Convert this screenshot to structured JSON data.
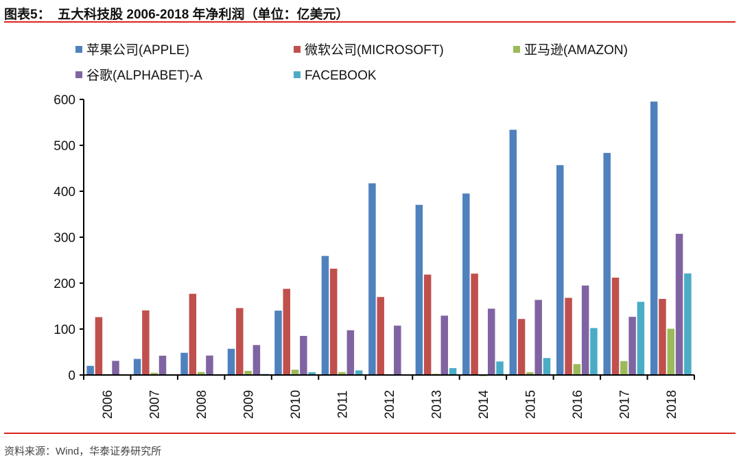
{
  "header": {
    "title": "图表5：  五大科技股 2006-2018 年净利润（单位：亿美元）"
  },
  "footer": {
    "source": "资料来源：Wind，华泰证券研究所"
  },
  "colors": {
    "rule": "#d9241b"
  },
  "chart_data": {
    "type": "bar",
    "title": "",
    "xlabel": "",
    "ylabel": "",
    "ylim": [
      0,
      600
    ],
    "yticks": [
      0,
      100,
      200,
      300,
      400,
      500,
      600
    ],
    "grid": false,
    "legend_placement": "top",
    "categories": [
      "2006",
      "2007",
      "2008",
      "2009",
      "2010",
      "2011",
      "2012",
      "2013",
      "2014",
      "2015",
      "2016",
      "2017",
      "2018"
    ],
    "series": [
      {
        "name": "苹果公司(APPLE)",
        "color": "#4F81BD",
        "values": [
          19.9,
          35.0,
          48.3,
          57.0,
          140.1,
          259.2,
          417.3,
          370.4,
          395.1,
          533.9,
          456.9,
          483.5,
          595.3
        ]
      },
      {
        "name": "微软公司(MICROSOFT)",
        "color": "#C0504D",
        "values": [
          126.0,
          140.7,
          176.8,
          145.7,
          187.6,
          231.5,
          169.8,
          218.6,
          220.7,
          122.0,
          168.0,
          212.0,
          165.7
        ]
      },
      {
        "name": "亚马逊(AMAZON)",
        "color": "#9BBB59",
        "values": [
          1.9,
          4.8,
          6.5,
          9.0,
          11.5,
          6.3,
          -0.4,
          2.7,
          -2.4,
          6.0,
          23.7,
          30.3,
          100.7
        ]
      },
      {
        "name": "谷歌(ALPHABET)-A",
        "color": "#8064A2",
        "values": [
          30.8,
          42.0,
          42.3,
          65.2,
          85.1,
          97.4,
          107.4,
          129.2,
          144.4,
          163.5,
          194.8,
          126.6,
          307.4
        ]
      },
      {
        "name": "FACEBOOK",
        "color": "#4BACC6",
        "values": [
          null,
          null,
          null,
          2.3,
          6.1,
          10.0,
          0.5,
          15.0,
          29.4,
          36.9,
          102.2,
          159.3,
          221.1
        ]
      }
    ]
  }
}
